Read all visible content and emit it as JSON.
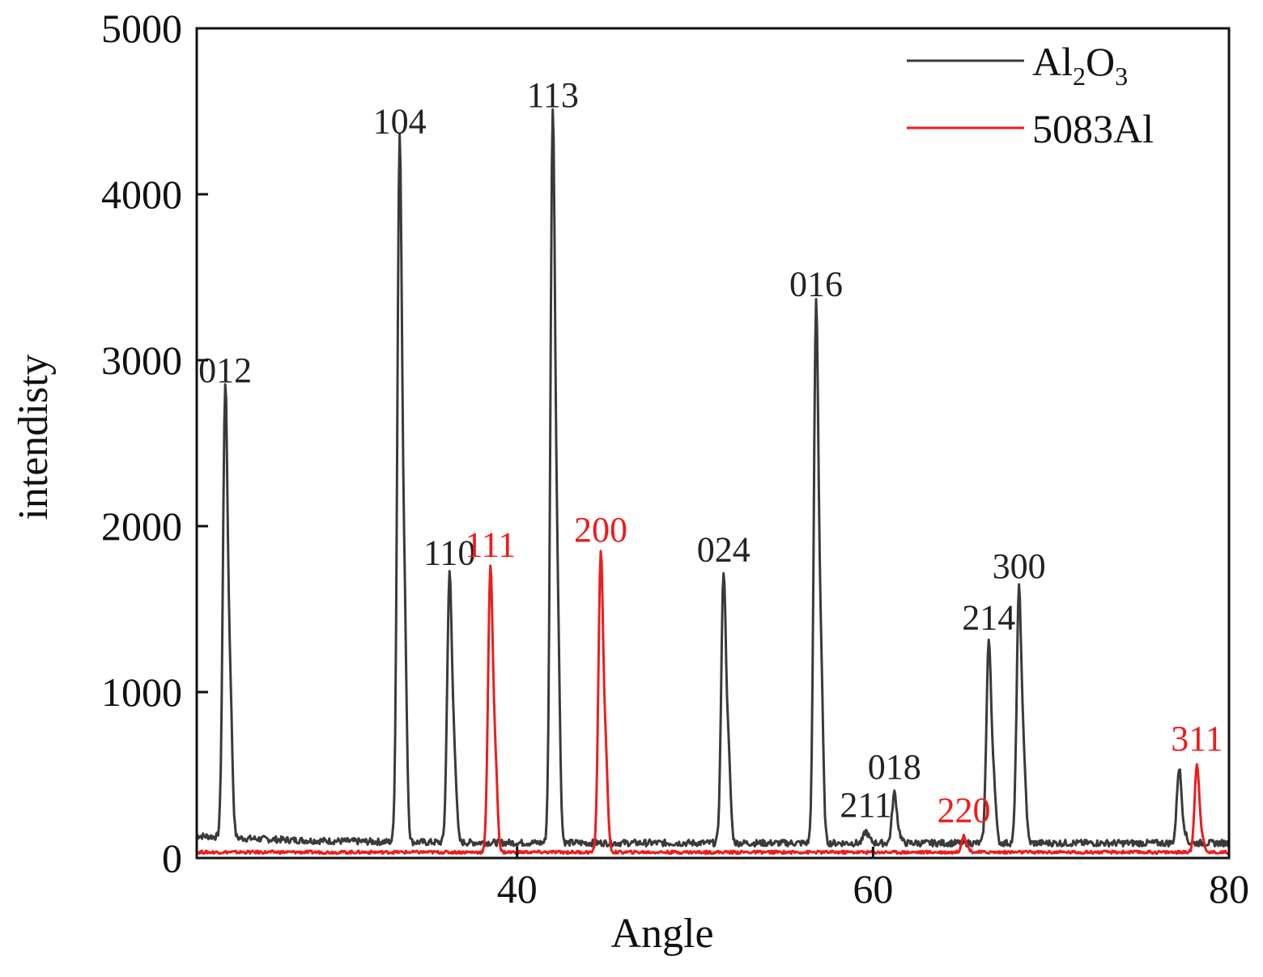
{
  "chart_data": {
    "type": "line",
    "xlabel": "Angle",
    "ylabel": "intendisty",
    "xlim": [
      22,
      80
    ],
    "ylim": [
      0,
      5000
    ],
    "x_ticks": [
      40,
      60,
      80
    ],
    "y_ticks": [
      0,
      1000,
      2000,
      3000,
      4000,
      5000
    ],
    "legend_position": "top-right",
    "legend": [
      {
        "name": "Al2O3",
        "base": "Al",
        "sub1": "2",
        "mid": "O",
        "sub2": "3",
        "color": "#3a3a3a"
      },
      {
        "name": "5083Al",
        "color": "#ee1c1c"
      }
    ],
    "series": [
      {
        "name": "Al2O3",
        "color": "#3a3a3a",
        "baseline": 90,
        "peaks": [
          {
            "x": 23.6,
            "y": 2780,
            "label": "012"
          },
          {
            "x": 33.4,
            "y": 4280,
            "label": "104"
          },
          {
            "x": 36.2,
            "y": 1680,
            "label": "110"
          },
          {
            "x": 42.0,
            "y": 4440,
            "label": "113"
          },
          {
            "x": 51.6,
            "y": 1700,
            "label": "024"
          },
          {
            "x": 56.8,
            "y": 3300,
            "label": "016"
          },
          {
            "x": 59.6,
            "y": 160,
            "label": "211"
          },
          {
            "x": 61.2,
            "y": 390,
            "label": "018"
          },
          {
            "x": 66.5,
            "y": 1290,
            "label": "214"
          },
          {
            "x": 68.2,
            "y": 1600,
            "label": "300"
          },
          {
            "x": 77.2,
            "y": 540,
            "label": ""
          }
        ]
      },
      {
        "name": "5083Al",
        "color": "#ee1c1c",
        "baseline": 35,
        "peaks": [
          {
            "x": 38.5,
            "y": 1730,
            "label": "111"
          },
          {
            "x": 44.7,
            "y": 1820,
            "label": "200"
          },
          {
            "x": 65.1,
            "y": 130,
            "label": "220"
          },
          {
            "x": 78.2,
            "y": 560,
            "label": "311"
          }
        ]
      }
    ]
  }
}
